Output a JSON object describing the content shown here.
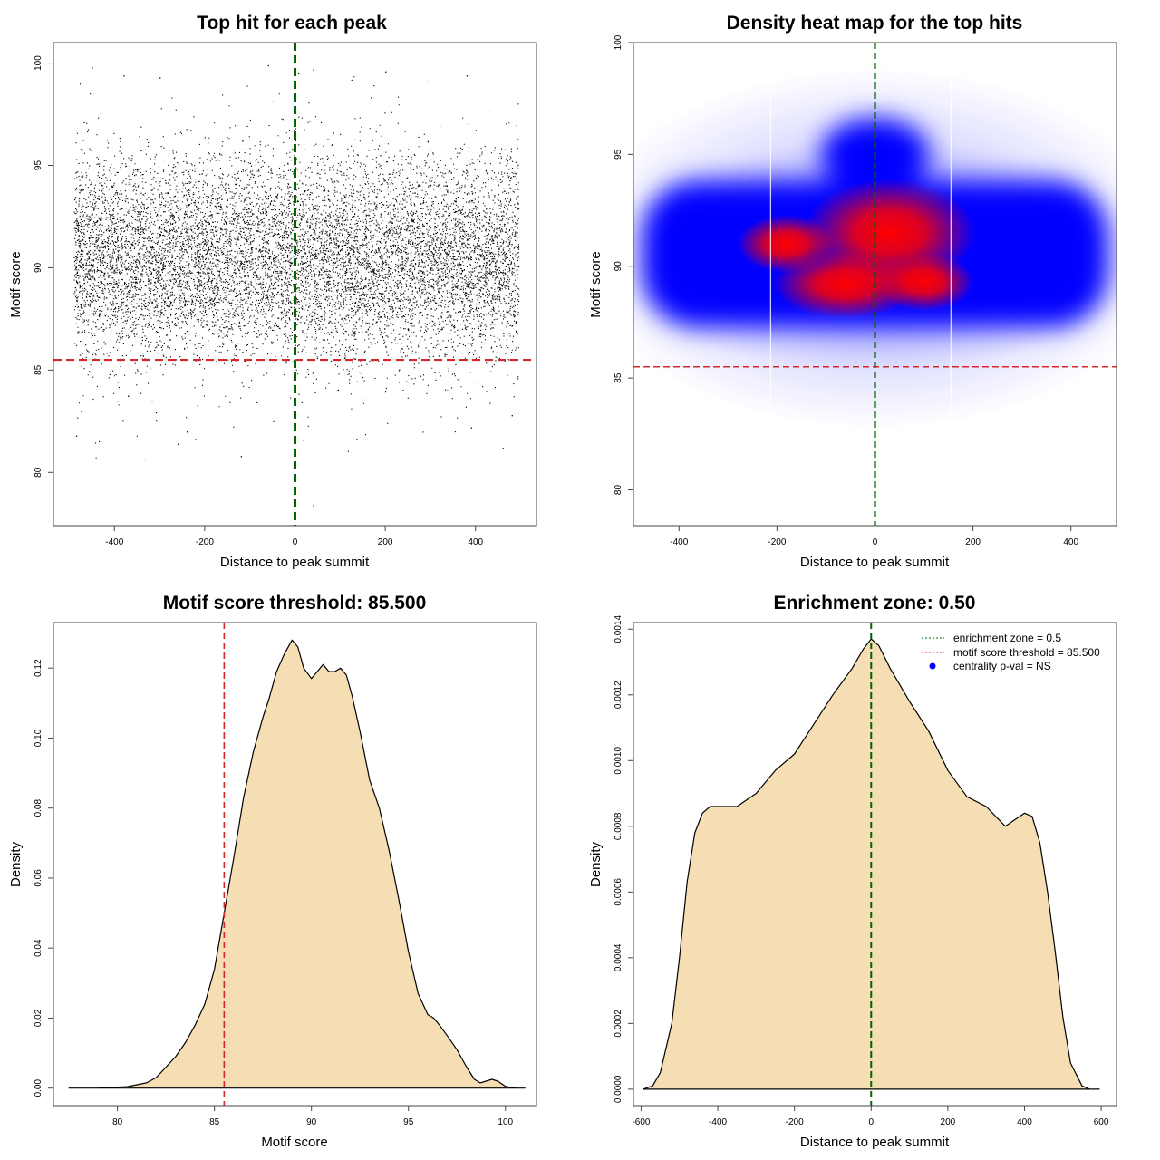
{
  "colors": {
    "fill": "#f5deb3",
    "green": "#006400",
    "red": "#d62728",
    "blue": "#0000ff",
    "heat_red": "#ff0000"
  },
  "chart_data": [
    {
      "type": "scatter",
      "title": "Top hit for each peak",
      "xlabel": "Distance to peak summit",
      "ylabel": "Motif score",
      "xlim": [
        -535,
        535
      ],
      "ylim": [
        77.4,
        101.0
      ],
      "xticks": [
        -400,
        -200,
        0,
        200,
        400
      ],
      "yticks": [
        80,
        85,
        90,
        95,
        100
      ],
      "point_sample": [
        {
          "x": -450,
          "y": 99.8
        },
        {
          "x": -380,
          "y": 99.4
        },
        {
          "x": -300,
          "y": 99.3
        },
        {
          "x": -60,
          "y": 99.9
        },
        {
          "x": 40,
          "y": 99.7
        },
        {
          "x": 200,
          "y": 99.6
        },
        {
          "x": 380,
          "y": 99.4
        },
        {
          "x": -485,
          "y": 81.8
        },
        {
          "x": -260,
          "y": 81.4
        },
        {
          "x": -240,
          "y": 82.0
        },
        {
          "x": -120,
          "y": 80.8
        },
        {
          "x": 40,
          "y": 78.4
        },
        {
          "x": 390,
          "y": 82.2
        },
        {
          "x": 460,
          "y": 81.2
        },
        {
          "x": 480,
          "y": 82.8
        }
      ],
      "vline": {
        "x": 0,
        "color": "green"
      },
      "hline": {
        "y": 85.5,
        "color": "red"
      }
    },
    {
      "type": "heatmap",
      "title": "Density heat map for the top hits",
      "xlabel": "Distance to peak summit",
      "ylabel": "Motif score",
      "xlim": [
        -493,
        493
      ],
      "ylim": [
        78.4,
        100.0
      ],
      "xticks": [
        -400,
        -200,
        0,
        200,
        400
      ],
      "yticks": [
        80,
        85,
        90,
        95,
        100
      ],
      "hotspots": [
        {
          "x": 30,
          "y": 91.5
        },
        {
          "x": -60,
          "y": 89.2
        },
        {
          "x": -180,
          "y": 91.0
        },
        {
          "x": 100,
          "y": 89.3
        }
      ],
      "white_vlines": [
        -213,
        155
      ],
      "vline": {
        "x": 0,
        "color": "green"
      },
      "hline": {
        "y": 85.5,
        "color": "red"
      }
    },
    {
      "type": "area",
      "title": "Motif score threshold: 85.500",
      "xlabel": "Motif score",
      "ylabel": "Density",
      "xlim": [
        76.7,
        101.6
      ],
      "ylim": [
        -0.005,
        0.133
      ],
      "xticks": [
        80,
        85,
        90,
        95,
        100
      ],
      "yticks": [
        0.0,
        0.02,
        0.04,
        0.06,
        0.08,
        0.1,
        0.12
      ],
      "ytick_labels": [
        "0.00",
        "0.02",
        "0.04",
        "0.06",
        "0.08",
        "0.10",
        "0.12"
      ],
      "x": [
        77.5,
        79,
        80.5,
        81.5,
        82,
        82.5,
        83,
        83.5,
        84,
        84.5,
        85,
        85.5,
        86,
        86.5,
        87,
        87.5,
        87.8,
        88.2,
        88.6,
        89,
        89.3,
        89.6,
        90,
        90.3,
        90.6,
        90.9,
        91.2,
        91.5,
        91.8,
        92.1,
        92.5,
        93,
        93.5,
        94,
        94.5,
        95,
        95.5,
        96,
        96.3,
        96.6,
        97,
        97.5,
        98,
        98.4,
        98.7,
        99,
        99.3,
        99.6,
        100,
        100.5,
        101
      ],
      "y": [
        0.0,
        0.0,
        0.0004,
        0.0015,
        0.003,
        0.006,
        0.009,
        0.013,
        0.018,
        0.024,
        0.034,
        0.05,
        0.066,
        0.083,
        0.096,
        0.106,
        0.111,
        0.119,
        0.124,
        0.128,
        0.126,
        0.12,
        0.117,
        0.119,
        0.121,
        0.119,
        0.119,
        0.12,
        0.118,
        0.112,
        0.102,
        0.088,
        0.08,
        0.068,
        0.054,
        0.039,
        0.027,
        0.021,
        0.02,
        0.018,
        0.015,
        0.011,
        0.006,
        0.0025,
        0.0015,
        0.002,
        0.0025,
        0.002,
        0.0005,
        0.0,
        0.0
      ],
      "vline": {
        "x": 85.5,
        "color": "red"
      }
    },
    {
      "type": "area",
      "title": "Enrichment zone: 0.50",
      "xlabel": "Distance to peak summit",
      "ylabel": "Density",
      "xlim": [
        -620,
        640
      ],
      "ylim": [
        -5e-05,
        0.00142
      ],
      "xticks": [
        -600,
        -400,
        -200,
        0,
        200,
        400,
        600
      ],
      "yticks": [
        0.0,
        0.0002,
        0.0004,
        0.0006,
        0.0008,
        0.001,
        0.0012,
        0.0014
      ],
      "ytick_labels": [
        "0.0000",
        "0.0002",
        "0.0004",
        "0.0006",
        "0.0008",
        "0.0010",
        "0.0012",
        "0.0014"
      ],
      "x": [
        -595,
        -570,
        -550,
        -520,
        -500,
        -480,
        -460,
        -440,
        -420,
        -400,
        -350,
        -300,
        -250,
        -200,
        -150,
        -100,
        -50,
        -20,
        0,
        20,
        50,
        100,
        150,
        200,
        250,
        300,
        350,
        400,
        420,
        440,
        460,
        480,
        500,
        520,
        550,
        570,
        595
      ],
      "y": [
        0.0,
        1e-05,
        5e-05,
        0.0002,
        0.0004,
        0.00063,
        0.00078,
        0.00084,
        0.00086,
        0.00086,
        0.00086,
        0.0009,
        0.00097,
        0.00102,
        0.00111,
        0.0012,
        0.00128,
        0.00134,
        0.00137,
        0.00135,
        0.00128,
        0.00118,
        0.00109,
        0.00097,
        0.00089,
        0.00086,
        0.0008,
        0.00084,
        0.00083,
        0.00075,
        0.0006,
        0.00042,
        0.00022,
        8e-05,
        1e-05,
        0.0,
        0.0
      ],
      "vline": {
        "x": 0,
        "color": "green"
      },
      "legend": {
        "position": "top-right",
        "entries": [
          {
            "label": "enrichment zone = 0.5",
            "kind": "dotted",
            "color": "green"
          },
          {
            "label": "motif score threshold = 85.500",
            "kind": "dotted",
            "color": "red"
          },
          {
            "label": "centrality p-val = NS",
            "kind": "point",
            "color": "blue"
          }
        ]
      }
    }
  ]
}
